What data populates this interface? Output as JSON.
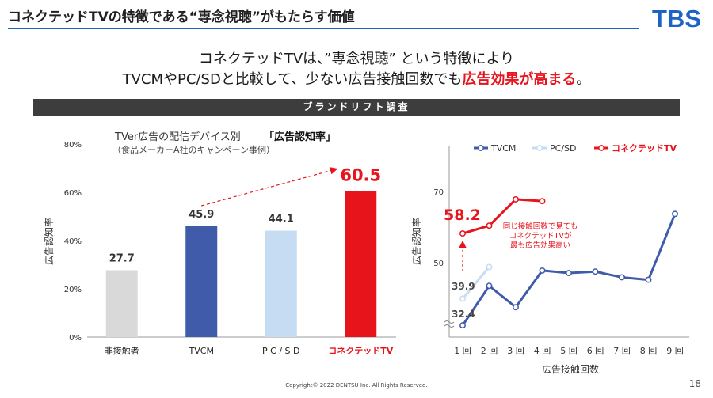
{
  "header": {
    "title": "コネクテッドTVの特徴である“専念視聴”がもたらす価値",
    "logo_text": "TBS"
  },
  "lead": {
    "line1": "コネクテッドTVは、”専念視聴” という特徴により",
    "line2_prefix": "TVCMやPC/SDと比較して、少ない広告接触回数でも",
    "line2_emphasis": "広告効果が高まる",
    "line2_suffix": "。"
  },
  "banner": {
    "text": "ブランドリフト調査"
  },
  "footer": {
    "copyright": "Copyright© 2022 DENTSU Inc. All Rights Reserved.",
    "page_number": "18"
  },
  "colors": {
    "accent_red": "#e8141c",
    "tvcm_blue": "#3f5ba9",
    "pcsd_light_blue": "#c6dcf3",
    "non_exposed_gray": "#d9d9d9",
    "title_rule_blue": "#1c63c5"
  },
  "chart_data": [
    {
      "type": "bar",
      "title_prefix": "TVer広告の配信デバイス別",
      "title_bold": "「広告認知率」",
      "subtitle": "（食品メーカーA社のキャンペーン事例）",
      "ylabel": "広告認知率",
      "ylim": [
        0,
        80
      ],
      "yticks": [
        "0%",
        "20%",
        "40%",
        "60%",
        "80%"
      ],
      "categories": [
        "非接触者",
        "TVCM",
        "P C / S D",
        "コネクテッドTV"
      ],
      "values": [
        27.7,
        45.9,
        44.1,
        60.5
      ],
      "value_labels": [
        "27.7",
        "45.9",
        "44.1",
        "60.5"
      ],
      "bar_colors": [
        "#d9d9d9",
        "#3f5ba9",
        "#c6dcf3",
        "#e8141c"
      ],
      "annotation": "TVCM → コネクテッドTV dashed arrow"
    },
    {
      "type": "line",
      "ylabel": "広告認知率",
      "xlabel": "広告接触回数",
      "x": [
        "1 回",
        "2 回",
        "3 回",
        "4 回",
        "5 回",
        "6 回",
        "7 回",
        "8 回",
        "9 回"
      ],
      "ytick_labels": [
        "50",
        "70"
      ],
      "series": [
        {
          "name": "TVCM",
          "color": "#3f5ba9",
          "values": [
            32.4,
            43.5,
            37.5,
            47.8,
            47.1,
            47.5,
            45.9,
            45.2,
            63.7
          ]
        },
        {
          "name": "PC/SD",
          "color": "#c6dcf3",
          "values": [
            39.9,
            48.8,
            null,
            null,
            null,
            null,
            null,
            null,
            null
          ]
        },
        {
          "name": "コネクテッドTV",
          "color": "#e8141c",
          "values": [
            58.2,
            60.4,
            67.8,
            67.3,
            null,
            null,
            null,
            null,
            null
          ]
        }
      ],
      "data_labels": {
        "tvcm_first": "32.4",
        "pcsd_first": "39.9",
        "ctv_first": "58.2"
      },
      "annotation_text": [
        "同じ接触回数で見ても",
        "コネクテッドTVが",
        "最も広告効果高い"
      ],
      "legend_position": "top"
    }
  ]
}
